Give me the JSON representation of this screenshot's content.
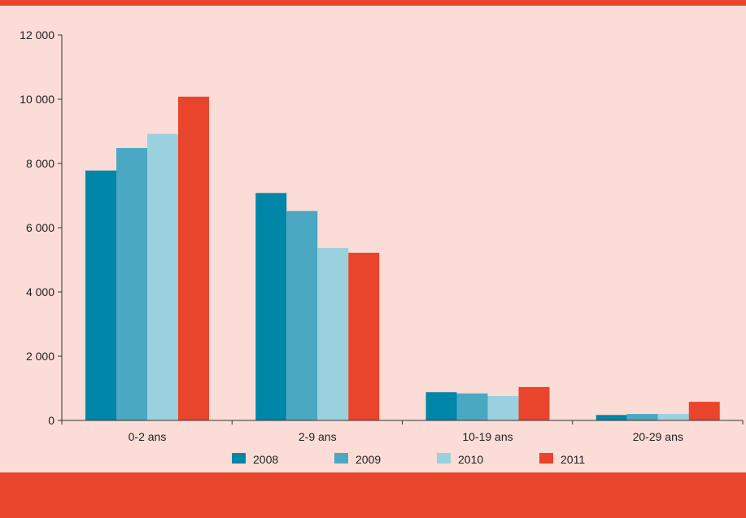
{
  "colors": {
    "background": "#fbdcd6",
    "accent_bar": "#e8452c"
  },
  "chart_data": {
    "type": "bar",
    "categories": [
      "0-2 ans",
      "2-9 ans",
      "10-19 ans",
      "20-29 ans"
    ],
    "series": [
      {
        "name": "2008",
        "color": "#0086a8",
        "values": [
          7780,
          7080,
          880,
          170
        ]
      },
      {
        "name": "2009",
        "color": "#4aa8c2",
        "values": [
          8480,
          6520,
          840,
          200
        ]
      },
      {
        "name": "2010",
        "color": "#99d1df",
        "values": [
          8920,
          5370,
          760,
          200
        ]
      },
      {
        "name": "2011",
        "color": "#e8452c",
        "values": [
          10080,
          5220,
          1040,
          580
        ]
      }
    ],
    "ylim": [
      0,
      12000
    ],
    "yticks": [
      0,
      2000,
      4000,
      6000,
      8000,
      10000,
      12000
    ],
    "ytick_labels": [
      "0",
      "2 000",
      "4 000",
      "6 000",
      "8 000",
      "10 000",
      "12 000"
    ],
    "grid": false,
    "legend_position": "bottom"
  }
}
